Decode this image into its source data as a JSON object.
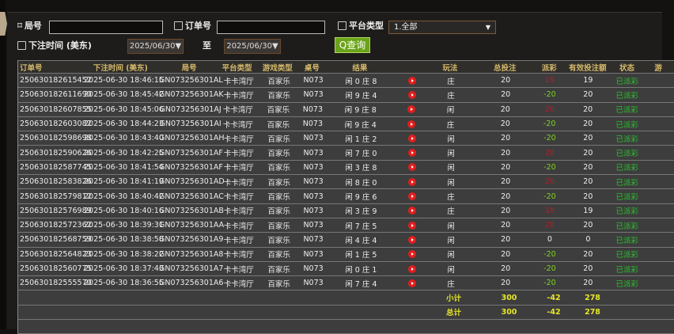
{
  "filters": {
    "round_label": "局号",
    "round_value": "",
    "order_label": "订单号",
    "order_value": "",
    "platform_label": "平台类型",
    "platform_value": "1.全部",
    "time_label": "下注时间 (美东)",
    "date_from": "2025/06/30▼",
    "to_label": "至",
    "date_to": "2025/06/30▼",
    "query_label": "Q查询"
  },
  "table": {
    "headers": [
      "订单号",
      "下注时间 (美东)",
      "局号",
      "平台类型",
      "游戏类型",
      "桌号",
      "结果",
      "",
      "玩法",
      "总投注",
      "派彩",
      "有效投注额",
      "状态",
      "游"
    ],
    "rows": [
      [
        "250630182615452",
        "2025-06-30 18:46:15",
        "GN073256301AL",
        "卡卡湾厅",
        "百家乐",
        "N073",
        "闲 0 庄 8",
        "庄",
        "20",
        "19",
        "19",
        "已派彩"
      ],
      [
        "250630182611690",
        "2025-06-30 18:45:42",
        "GN073256301AK",
        "卡卡湾厅",
        "百家乐",
        "N073",
        "闲 9 庄 4",
        "庄",
        "20",
        "-20",
        "20",
        "已派彩"
      ],
      [
        "250630182607855",
        "2025-06-30 18:45:06",
        "GN073256301AJ",
        "卡卡湾厅",
        "百家乐",
        "N073",
        "闲 9 庄 8",
        "闲",
        "20",
        "20",
        "20",
        "已派彩"
      ],
      [
        "250630182603082",
        "2025-06-30 18:44:23",
        "GN073256301AI",
        "卡卡湾厅",
        "百家乐",
        "N073",
        "闲 9 庄 4",
        "庄",
        "20",
        "-20",
        "20",
        "已派彩"
      ],
      [
        "250630182598698",
        "2025-06-30 18:43:40",
        "GN073256301AH",
        "卡卡湾厅",
        "百家乐",
        "N073",
        "闲 1 庄 2",
        "闲",
        "20",
        "-20",
        "20",
        "已派彩"
      ],
      [
        "250630182590626",
        "2025-06-30 18:42:25",
        "GN073256301AF",
        "卡卡湾厅",
        "百家乐",
        "N073",
        "闲 7 庄 0",
        "闲",
        "20",
        "20",
        "20",
        "已派彩"
      ],
      [
        "250630182587745",
        "2025-06-30 18:41:54",
        "GN073256301AF",
        "卡卡湾厅",
        "百家乐",
        "N073",
        "闲 3 庄 8",
        "闲",
        "20",
        "-20",
        "20",
        "已派彩"
      ],
      [
        "250630182583826",
        "2025-06-30 18:41:19",
        "GN073256301AD",
        "卡卡湾厅",
        "百家乐",
        "N073",
        "闲 8 庄 0",
        "闲",
        "20",
        "20",
        "20",
        "已派彩"
      ],
      [
        "250630182579812",
        "2025-06-30 18:40:42",
        "GN073256301AC",
        "卡卡湾厅",
        "百家乐",
        "N073",
        "闲 9 庄 6",
        "庄",
        "20",
        "-20",
        "20",
        "已派彩"
      ],
      [
        "250630182576989",
        "2025-06-30 18:40:16",
        "GN073256301AB",
        "卡卡湾厅",
        "百家乐",
        "N073",
        "闲 3 庄 9",
        "庄",
        "20",
        "19",
        "19",
        "已派彩"
      ],
      [
        "250630182572362",
        "2025-06-30 18:39:31",
        "GN073256301AA",
        "卡卡湾厅",
        "百家乐",
        "N073",
        "闲 7 庄 5",
        "闲",
        "20",
        "20",
        "20",
        "已派彩"
      ],
      [
        "250630182568759",
        "2025-06-30 18:38:58",
        "GN073256301A9",
        "卡卡湾厅",
        "百家乐",
        "N073",
        "闲 4 庄 4",
        "闲",
        "20",
        "0",
        "0",
        "已派彩"
      ],
      [
        "250630182564823",
        "2025-06-30 18:38:22",
        "GN073256301A8",
        "卡卡湾厅",
        "百家乐",
        "N073",
        "闲 1 庄 5",
        "闲",
        "20",
        "-20",
        "20",
        "已派彩"
      ],
      [
        "250630182560775",
        "2025-06-30 18:37:43",
        "GN073256301A7",
        "卡卡湾厅",
        "百家乐",
        "N073",
        "闲 0 庄 1",
        "闲",
        "20",
        "-20",
        "20",
        "已派彩"
      ],
      [
        "250630182555570",
        "2025-06-30 18:36:55",
        "GN073256301A6",
        "卡卡湾厅",
        "百家乐",
        "N073",
        "闲 7 庄 4",
        "庄",
        "20",
        "-20",
        "20",
        "已派彩"
      ]
    ],
    "subtotal": {
      "label": "小计",
      "total_bet": "300",
      "payout": "-42",
      "valid_bet": "278"
    },
    "total": {
      "label": "总计",
      "total_bet": "300",
      "payout": "-42",
      "valid_bet": "278"
    }
  },
  "colors": {
    "payout_positive": "#b0202a",
    "payout_negative": "#7ed321",
    "status": "#27c12a",
    "summary": "#e6e62a",
    "header": "#d4b86a",
    "query_button": "#6aa318"
  }
}
